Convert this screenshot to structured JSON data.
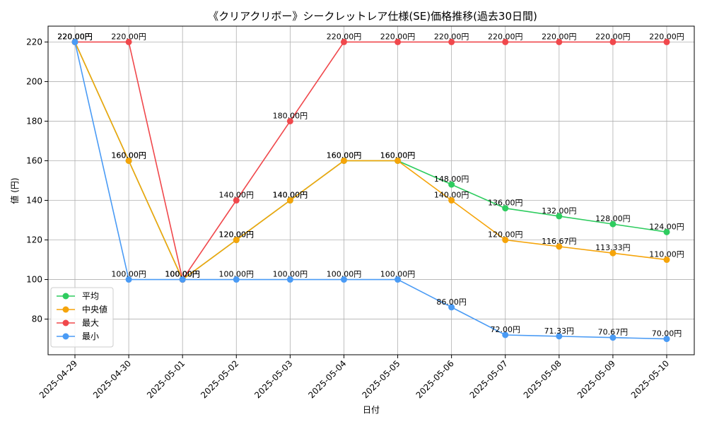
{
  "chart_data": {
    "type": "line",
    "title": "《クリアクリボー》シークレットレア仕様(SE)価格推移(過去30日間)",
    "xlabel": "日付",
    "ylabel": "値 (円)",
    "ylim": [
      62,
      228
    ],
    "yticks": [
      80,
      100,
      120,
      140,
      160,
      180,
      200,
      220
    ],
    "grid": true,
    "legend_position": "lower-left",
    "categories": [
      "2025-04-29",
      "2025-04-30",
      "2025-05-01",
      "2025-05-02",
      "2025-05-03",
      "2025-05-04",
      "2025-05-05",
      "2025-05-06",
      "2025-05-07",
      "2025-05-08",
      "2025-05-09",
      "2025-05-10"
    ],
    "series": [
      {
        "name": "平均",
        "color": "#2ecc5f",
        "values": [
          220,
          160,
          100,
          120,
          140,
          160,
          160,
          148,
          136,
          132,
          128,
          124
        ]
      },
      {
        "name": "中央値",
        "color": "#f5a40a",
        "values": [
          220,
          160,
          100,
          120,
          140,
          160,
          160,
          140,
          120,
          116.67,
          113.33,
          110
        ]
      },
      {
        "name": "最大",
        "color": "#f0484c",
        "values": [
          220,
          220,
          100,
          140,
          180,
          220,
          220,
          220,
          220,
          220,
          220,
          220
        ]
      },
      {
        "name": "最小",
        "color": "#4a9bf5",
        "values": [
          220,
          100,
          100,
          100,
          100,
          100,
          100,
          86,
          72,
          71.33,
          70.67,
          70
        ]
      }
    ],
    "label_suffix": "円"
  }
}
